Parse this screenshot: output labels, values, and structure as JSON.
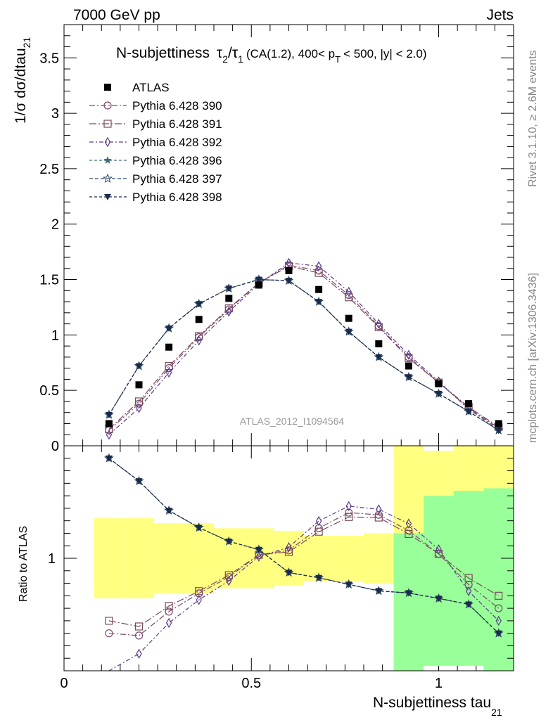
{
  "header": {
    "energy_label": "7000 GeV pp",
    "process_label": "Jets"
  },
  "side_labels": {
    "rivet": "Rivet 3.1.10, ≥ 2.6M events",
    "ref": "mcplots.cern.ch [arXiv:1306.3436]"
  },
  "watermark": "ATLAS_2012_I1094564",
  "title": {
    "main": "N-subjettiness",
    "tau_num": "τ",
    "tau_num_sub": "2",
    "slash": "/",
    "tau_den": "τ",
    "tau_den_sub": "1",
    "cuts_a": "(CA(1.2), 400< p",
    "cuts_sub": "T",
    "cuts_b": "< 500, |y| < 2.0)"
  },
  "y_axis": {
    "main": "1/σ dσ/dtau",
    "sub": "21"
  },
  "ratio_axis_label": "Ratio to ATLAS",
  "x_axis": {
    "main": "N-subjettiness tau",
    "sub": "21"
  },
  "colors": {
    "atlas": "#000000",
    "p390": "#7b4a6e",
    "p391": "#7b4a5c",
    "p392": "#5b3a8a",
    "p396": "#3d6a7a",
    "p397": "#2c4a66",
    "p398": "#1c2a4a",
    "band_inner": "#ffff80",
    "band_outer": "#99ff99"
  },
  "chart_data": {
    "type": "line",
    "xlim": [
      0,
      1.2
    ],
    "ylim_main": [
      0,
      3.8
    ],
    "ylim_ratio": [
      0.55,
      1.45
    ],
    "x_ticks_labeled": [
      0,
      0.5,
      1
    ],
    "y_ticks_labeled": [
      "0",
      "0.5",
      "1",
      "1.5",
      "2",
      "2.5",
      "3",
      "3.5"
    ],
    "ratio_ticks_labeled": [
      "1"
    ],
    "x": [
      0.12,
      0.2,
      0.28,
      0.36,
      0.44,
      0.52,
      0.6,
      0.68,
      0.76,
      0.84,
      0.92,
      1.0,
      1.08,
      1.16
    ],
    "data_band_edges": [
      0.08,
      0.16,
      0.24,
      0.32,
      0.4,
      0.48,
      0.56,
      0.64,
      0.72,
      0.8,
      0.88,
      0.96,
      1.04,
      1.12,
      1.2
    ],
    "data": {
      "name": "ATLAS",
      "values": [
        0.2,
        0.55,
        0.89,
        1.14,
        1.33,
        1.45,
        1.58,
        1.41,
        1.15,
        0.92,
        0.72,
        0.56,
        0.38,
        0.2
      ],
      "ratio_band_lo": [
        0.84,
        0.84,
        0.86,
        0.86,
        0.88,
        0.88,
        0.89,
        0.91,
        0.91,
        0.9,
        0.55,
        0.57,
        0.57,
        0.52
      ],
      "ratio_band_hi": [
        1.16,
        1.16,
        1.14,
        1.14,
        1.12,
        1.12,
        1.11,
        1.09,
        1.09,
        1.1,
        1.45,
        1.43,
        1.45,
        1.48
      ],
      "ratio_band_green_lo": [
        1,
        1,
        1,
        1,
        1,
        1,
        1,
        1,
        1,
        1,
        0.55,
        0.57,
        0.57,
        0.55
      ],
      "ratio_band_green_hi": [
        1,
        1,
        1,
        1,
        1,
        1,
        1,
        1,
        1,
        1,
        1.1,
        1.25,
        1.27,
        1.28
      ]
    },
    "series": [
      {
        "name": "Pythia 6.428 390",
        "color_key": "p390",
        "marker": "circle-open",
        "dash": "8,3,2,3",
        "values": [
          0.14,
          0.38,
          0.7,
          0.98,
          1.23,
          1.47,
          1.63,
          1.58,
          1.36,
          1.08,
          0.8,
          0.57,
          0.34,
          0.16
        ]
      },
      {
        "name": "Pythia 6.428 391",
        "color_key": "p391",
        "marker": "square-open",
        "dash": "10,3,2,3",
        "values": [
          0.15,
          0.4,
          0.72,
          0.99,
          1.24,
          1.47,
          1.62,
          1.56,
          1.34,
          1.07,
          0.79,
          0.57,
          0.35,
          0.17
        ]
      },
      {
        "name": "Pythia 6.428 392",
        "color_key": "p392",
        "marker": "diamond-open",
        "dash": "6,3,2,3",
        "values": [
          0.1,
          0.34,
          0.66,
          0.95,
          1.21,
          1.46,
          1.65,
          1.62,
          1.39,
          1.1,
          0.82,
          0.58,
          0.33,
          0.15
        ]
      },
      {
        "name": "Pythia 6.428 396",
        "color_key": "p396",
        "marker": "star-filled",
        "dash": "4,3",
        "values": [
          0.28,
          0.72,
          1.06,
          1.28,
          1.42,
          1.5,
          1.49,
          1.3,
          1.03,
          0.8,
          0.62,
          0.47,
          0.31,
          0.14
        ]
      },
      {
        "name": "Pythia 6.428 397",
        "color_key": "p397",
        "marker": "star-open",
        "dash": "5,3",
        "values": [
          0.28,
          0.72,
          1.06,
          1.28,
          1.42,
          1.5,
          1.49,
          1.3,
          1.03,
          0.8,
          0.62,
          0.47,
          0.31,
          0.14
        ]
      },
      {
        "name": "Pythia 6.428 398",
        "color_key": "p398",
        "marker": "triangle-down-filled",
        "dash": "4,3",
        "values": [
          0.28,
          0.72,
          1.06,
          1.28,
          1.42,
          1.5,
          1.49,
          1.3,
          1.03,
          0.8,
          0.62,
          0.47,
          0.31,
          0.14
        ]
      }
    ],
    "legend_position": "top-left"
  }
}
